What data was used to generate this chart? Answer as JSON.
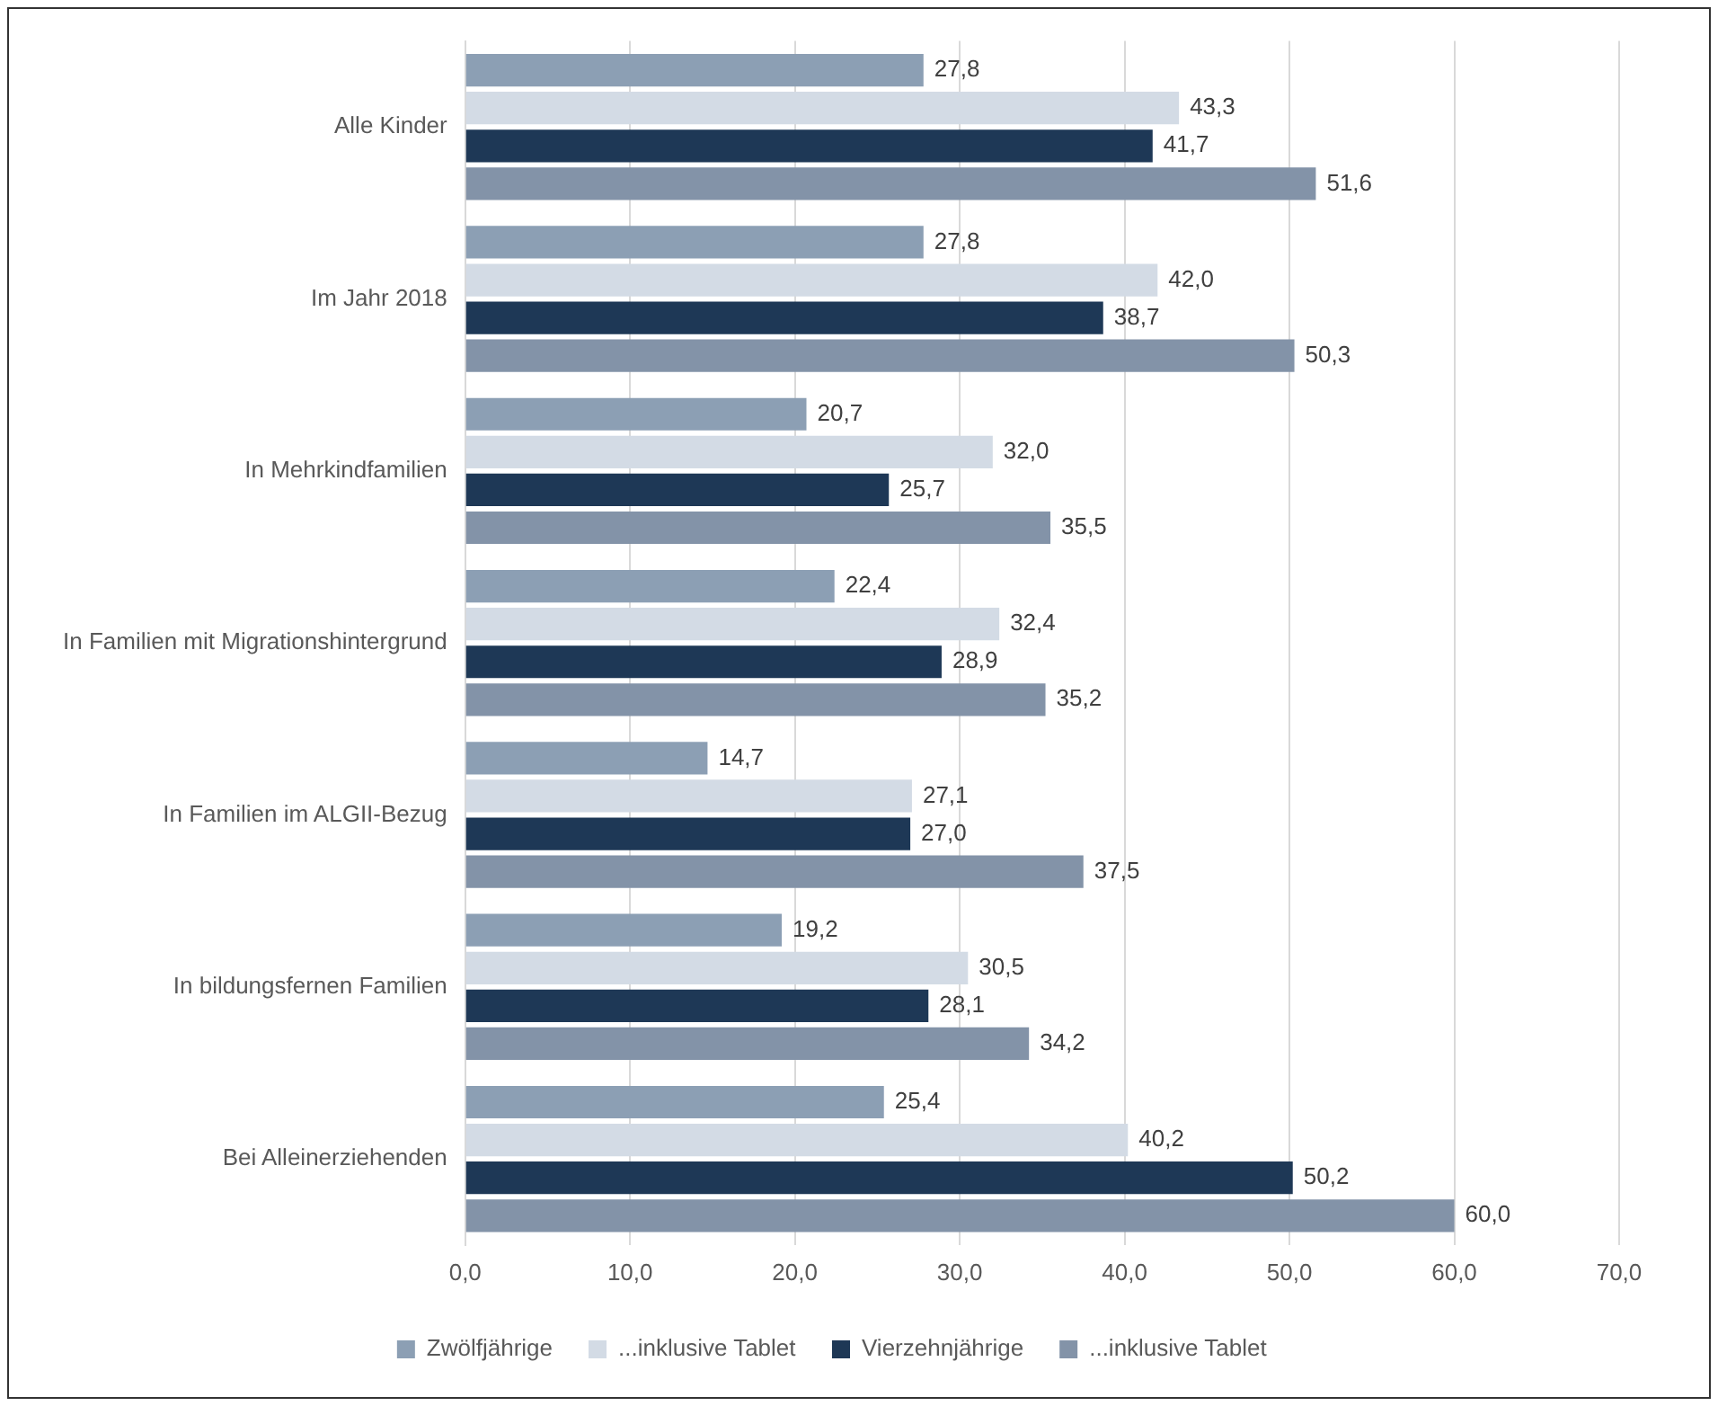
{
  "chart_data": {
    "type": "bar",
    "orientation": "horizontal",
    "categories": [
      "Alle Kinder",
      "Im Jahr 2018",
      "In Mehrkindfamilien",
      "In Familien mit Migrationshintergrund",
      "In Familien im ALGII-Bezug",
      "In bildungsfernen Familien",
      "Bei Alleinerziehenden"
    ],
    "series": [
      {
        "name": "Zwölfjährige",
        "color": "#8c9fb4",
        "values": [
          27.8,
          27.8,
          20.7,
          22.4,
          14.7,
          19.2,
          25.4
        ],
        "value_labels": [
          "27,8",
          "27,8",
          "20,7",
          "22,4",
          "14,7",
          "19,2",
          "25,4"
        ]
      },
      {
        "name": "...inklusive Tablet",
        "color": "#d3dbe5",
        "values": [
          43.3,
          42.0,
          32.0,
          32.4,
          27.1,
          30.5,
          40.2
        ],
        "value_labels": [
          "43,3",
          "42,0",
          "32,0",
          "32,4",
          "27,1",
          "30,5",
          "40,2"
        ]
      },
      {
        "name": "Vierzehnjährige",
        "color": "#1e3856",
        "values": [
          41.7,
          38.7,
          25.7,
          28.9,
          27.0,
          28.1,
          50.2
        ],
        "value_labels": [
          "41,7",
          "38,7",
          "25,7",
          "28,9",
          "27,0",
          "28,1",
          "50,2"
        ]
      },
      {
        "name": "...inklusive Tablet",
        "color": "#8393a8",
        "values": [
          51.6,
          50.3,
          35.5,
          35.2,
          37.5,
          34.2,
          60.0
        ],
        "value_labels": [
          "51,6",
          "50,3",
          "35,5",
          "35,2",
          "37,5",
          "34,2",
          "60,0"
        ]
      }
    ],
    "xlim": [
      0,
      70
    ],
    "xticks": [
      {
        "value": 0,
        "label": "0,0"
      },
      {
        "value": 10,
        "label": "10,0"
      },
      {
        "value": 20,
        "label": "20,0"
      },
      {
        "value": 30,
        "label": "30,0"
      },
      {
        "value": 40,
        "label": "40,0"
      },
      {
        "value": 50,
        "label": "50,0"
      },
      {
        "value": 60,
        "label": "60,0"
      },
      {
        "value": 70,
        "label": "70,0"
      }
    ],
    "grid": "x",
    "legend": "bottom"
  }
}
